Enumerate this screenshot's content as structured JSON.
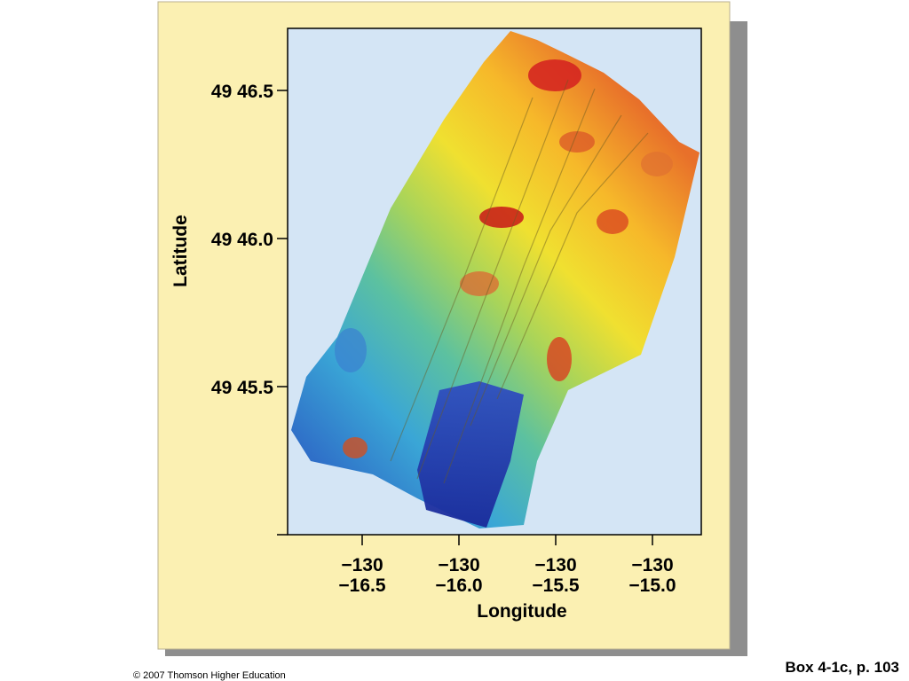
{
  "figure": {
    "y_axis": {
      "title": "Latitude",
      "ticks": [
        "49 46.5",
        "49 46.0",
        "49 45.5"
      ]
    },
    "x_axis": {
      "title": "Longitude",
      "ticks": [
        {
          "line1": "−130",
          "line2": "−16.5"
        },
        {
          "line1": "−130",
          "line2": "−16.0"
        },
        {
          "line1": "−130",
          "line2": "−15.5"
        },
        {
          "line1": "−130",
          "line2": "−15.0"
        }
      ]
    }
  },
  "footer": {
    "credit": "© 2007 Thomson Higher Education",
    "caption": "Box 4-1c, p. 103"
  }
}
